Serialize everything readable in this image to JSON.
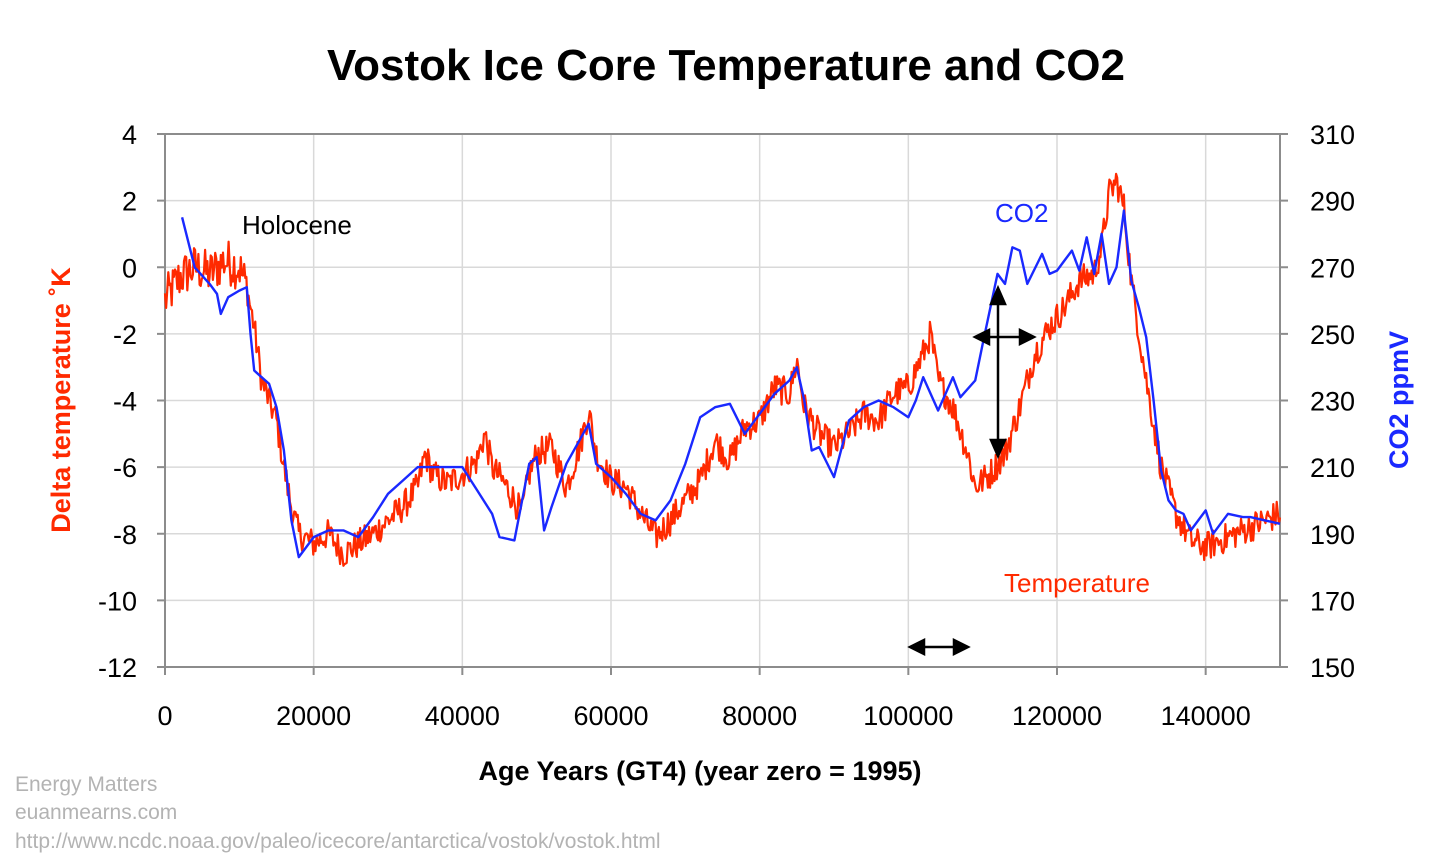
{
  "chart_data": {
    "type": "line",
    "title": "Vostok Ice Core Temperature and CO2",
    "xlabel": "Age Years (GT4) (year zero = 1995)",
    "ylabel_left": "Delta temperature ˚K",
    "ylabel_right": "CO2 ppmV",
    "xlim": [
      0,
      150000
    ],
    "ylim_left": [
      -12,
      4
    ],
    "ylim_right": [
      150,
      310
    ],
    "x_ticks": [
      0,
      20000,
      40000,
      60000,
      80000,
      100000,
      120000,
      140000
    ],
    "y_ticks_left": [
      4,
      2,
      0,
      -2,
      -4,
      -6,
      -8,
      -10,
      -12
    ],
    "y_ticks_right": [
      310,
      290,
      270,
      250,
      230,
      210,
      190,
      170,
      150
    ],
    "grid": true,
    "series": [
      {
        "name": "Temperature",
        "axis": "left",
        "color": "#ff2a00",
        "points": [
          [
            0,
            -1.0
          ],
          [
            2000,
            -0.3
          ],
          [
            4000,
            0.0
          ],
          [
            6000,
            -0.2
          ],
          [
            8000,
            0.2
          ],
          [
            10000,
            0.0
          ],
          [
            11000,
            -0.6
          ],
          [
            12000,
            -1.8
          ],
          [
            13000,
            -3.4
          ],
          [
            14000,
            -4.0
          ],
          [
            15000,
            -4.6
          ],
          [
            16000,
            -6.0
          ],
          [
            17000,
            -7.2
          ],
          [
            18000,
            -8.0
          ],
          [
            20000,
            -8.3
          ],
          [
            22000,
            -8.0
          ],
          [
            24000,
            -8.6
          ],
          [
            26000,
            -8.3
          ],
          [
            28000,
            -8.0
          ],
          [
            30000,
            -7.6
          ],
          [
            32000,
            -7.2
          ],
          [
            34000,
            -6.6
          ],
          [
            35000,
            -5.6
          ],
          [
            36000,
            -6.2
          ],
          [
            38000,
            -6.5
          ],
          [
            40000,
            -6.2
          ],
          [
            42000,
            -5.8
          ],
          [
            43000,
            -5.0
          ],
          [
            44000,
            -6.0
          ],
          [
            46000,
            -6.6
          ],
          [
            48000,
            -7.4
          ],
          [
            49000,
            -6.2
          ],
          [
            50000,
            -5.6
          ],
          [
            52000,
            -5.4
          ],
          [
            54000,
            -6.6
          ],
          [
            56000,
            -5.2
          ],
          [
            57000,
            -4.3
          ],
          [
            58000,
            -5.6
          ],
          [
            60000,
            -6.4
          ],
          [
            62000,
            -6.6
          ],
          [
            64000,
            -7.4
          ],
          [
            66000,
            -8.1
          ],
          [
            68000,
            -7.6
          ],
          [
            70000,
            -7.0
          ],
          [
            72000,
            -6.4
          ],
          [
            74000,
            -5.2
          ],
          [
            76000,
            -5.8
          ],
          [
            78000,
            -4.8
          ],
          [
            80000,
            -4.6
          ],
          [
            82000,
            -3.6
          ],
          [
            84000,
            -3.8
          ],
          [
            85000,
            -2.8
          ],
          [
            86000,
            -4.2
          ],
          [
            88000,
            -5.0
          ],
          [
            90000,
            -5.4
          ],
          [
            92000,
            -5.0
          ],
          [
            94000,
            -4.4
          ],
          [
            96000,
            -4.6
          ],
          [
            98000,
            -3.8
          ],
          [
            100000,
            -3.6
          ],
          [
            102000,
            -2.6
          ],
          [
            103000,
            -2.0
          ],
          [
            104000,
            -3.4
          ],
          [
            106000,
            -4.2
          ],
          [
            108000,
            -5.6
          ],
          [
            109000,
            -6.6
          ],
          [
            111000,
            -6.2
          ],
          [
            113000,
            -5.6
          ],
          [
            115000,
            -4.2
          ],
          [
            117000,
            -2.6
          ],
          [
            119000,
            -1.8
          ],
          [
            121000,
            -1.2
          ],
          [
            123000,
            -0.4
          ],
          [
            125000,
            -0.2
          ],
          [
            126000,
            0.6
          ],
          [
            127000,
            2.2
          ],
          [
            128000,
            2.6
          ],
          [
            129000,
            1.8
          ],
          [
            130000,
            -0.4
          ],
          [
            132000,
            -3.4
          ],
          [
            134000,
            -6.0
          ],
          [
            136000,
            -7.4
          ],
          [
            138000,
            -8.2
          ],
          [
            140000,
            -8.4
          ],
          [
            142000,
            -8.2
          ],
          [
            144000,
            -8.0
          ],
          [
            146000,
            -7.8
          ],
          [
            148000,
            -7.6
          ],
          [
            150000,
            -7.4
          ]
        ]
      },
      {
        "name": "CO2",
        "axis": "right",
        "color": "#1a29ff",
        "points": [
          [
            2300,
            285
          ],
          [
            4000,
            270
          ],
          [
            6000,
            265
          ],
          [
            7000,
            262
          ],
          [
            7500,
            256
          ],
          [
            8500,
            261
          ],
          [
            10000,
            263
          ],
          [
            11000,
            264
          ],
          [
            11500,
            250
          ],
          [
            12000,
            239
          ],
          [
            13000,
            237
          ],
          [
            14000,
            235
          ],
          [
            15000,
            228
          ],
          [
            16000,
            215
          ],
          [
            17000,
            194
          ],
          [
            18000,
            183
          ],
          [
            20000,
            189
          ],
          [
            22000,
            191
          ],
          [
            24000,
            191
          ],
          [
            26000,
            189
          ],
          [
            28000,
            195
          ],
          [
            30000,
            202
          ],
          [
            32000,
            206
          ],
          [
            34000,
            210
          ],
          [
            36000,
            210
          ],
          [
            38000,
            210
          ],
          [
            40000,
            210
          ],
          [
            42000,
            203
          ],
          [
            44000,
            196
          ],
          [
            45000,
            189
          ],
          [
            47000,
            188
          ],
          [
            49000,
            211
          ],
          [
            50000,
            213
          ],
          [
            51000,
            191
          ],
          [
            52000,
            198
          ],
          [
            54000,
            211
          ],
          [
            56000,
            219
          ],
          [
            57000,
            223
          ],
          [
            58000,
            211
          ],
          [
            60000,
            207
          ],
          [
            62000,
            202
          ],
          [
            64000,
            196
          ],
          [
            66000,
            194
          ],
          [
            68000,
            200
          ],
          [
            70000,
            211
          ],
          [
            72000,
            225
          ],
          [
            74000,
            228
          ],
          [
            76000,
            229
          ],
          [
            78000,
            220
          ],
          [
            80000,
            226
          ],
          [
            82000,
            232
          ],
          [
            84000,
            236
          ],
          [
            85000,
            240
          ],
          [
            86000,
            230
          ],
          [
            87000,
            215
          ],
          [
            88000,
            216
          ],
          [
            90000,
            207
          ],
          [
            92000,
            224
          ],
          [
            94000,
            228
          ],
          [
            96000,
            230
          ],
          [
            98000,
            228
          ],
          [
            100000,
            225
          ],
          [
            101000,
            230
          ],
          [
            102000,
            237
          ],
          [
            104000,
            227
          ],
          [
            106000,
            237
          ],
          [
            107000,
            231
          ],
          [
            109000,
            236
          ],
          [
            110000,
            247
          ],
          [
            112000,
            268
          ],
          [
            113000,
            265
          ],
          [
            114000,
            276
          ],
          [
            115000,
            275
          ],
          [
            116000,
            265
          ],
          [
            118000,
            274
          ],
          [
            119000,
            268
          ],
          [
            120000,
            269
          ],
          [
            121000,
            272
          ],
          [
            122000,
            275
          ],
          [
            123000,
            269
          ],
          [
            124000,
            279
          ],
          [
            125000,
            268
          ],
          [
            126000,
            280
          ],
          [
            127000,
            265
          ],
          [
            128000,
            270
          ],
          [
            129000,
            287
          ],
          [
            130000,
            266
          ],
          [
            131000,
            258
          ],
          [
            132000,
            249
          ],
          [
            133000,
            230
          ],
          [
            134000,
            209
          ],
          [
            135000,
            200
          ],
          [
            136000,
            197
          ],
          [
            137000,
            196
          ],
          [
            138000,
            191
          ],
          [
            140000,
            197
          ],
          [
            141000,
            190
          ],
          [
            143000,
            196
          ],
          [
            145000,
            195
          ],
          [
            146000,
            195
          ],
          [
            148000,
            194
          ],
          [
            150000,
            193
          ]
        ]
      }
    ],
    "annotations": {
      "holocene": "Holocene",
      "co2_label": "CO2",
      "temperature_label": "Temperature"
    },
    "credit": [
      "Energy Matters",
      "euanmearns.com",
      "http://www.ncdc.noaa.gov/paleo/icecore/antarctica/vostok/vostok.html"
    ]
  }
}
